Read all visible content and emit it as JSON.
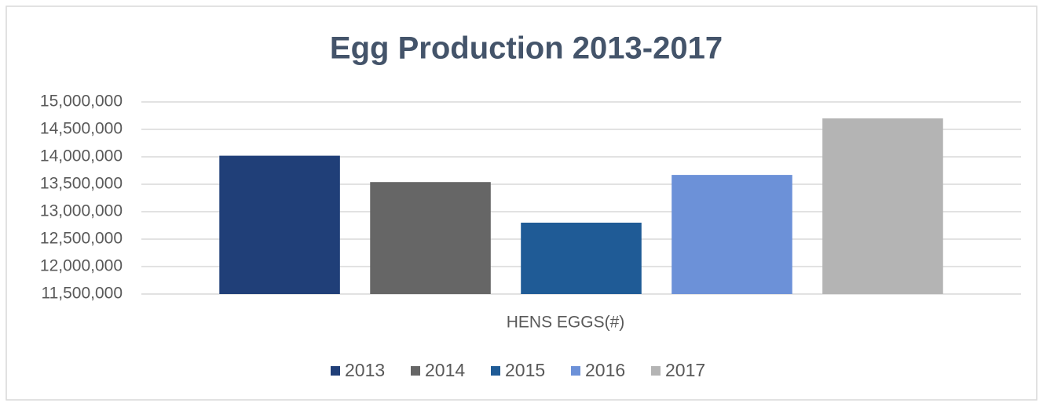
{
  "chart_data": {
    "type": "bar",
    "title": "Egg Production 2013-2017",
    "categories": [
      "HENS EGGS(#)"
    ],
    "series": [
      {
        "name": "2013",
        "color": "#203f78",
        "values": [
          14020000
        ]
      },
      {
        "name": "2014",
        "color": "#666666",
        "values": [
          13540000
        ]
      },
      {
        "name": "2015",
        "color": "#1f5b96",
        "values": [
          12800000
        ]
      },
      {
        "name": "2016",
        "color": "#6c91d8",
        "values": [
          13670000
        ]
      },
      {
        "name": "2017",
        "color": "#b4b4b4",
        "values": [
          14700000
        ]
      }
    ],
    "ylim": [
      11500000,
      15000000
    ],
    "yticks": [
      {
        "value": 11500000,
        "label": "11,500,000"
      },
      {
        "value": 12000000,
        "label": "12,000,000"
      },
      {
        "value": 12500000,
        "label": "12,500,000"
      },
      {
        "value": 13000000,
        "label": "13,000,000"
      },
      {
        "value": 13500000,
        "label": "13,500,000"
      },
      {
        "value": 14000000,
        "label": "14,000,000"
      },
      {
        "value": 14500000,
        "label": "14,500,000"
      },
      {
        "value": 15000000,
        "label": "15,000,000"
      }
    ],
    "grid": true,
    "legend": "bottom"
  }
}
